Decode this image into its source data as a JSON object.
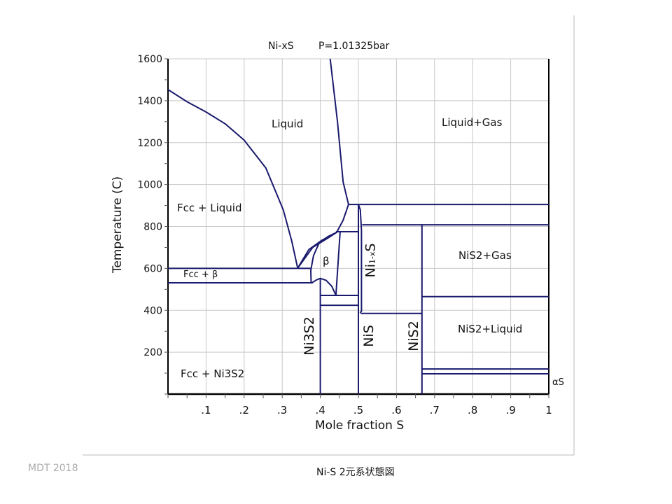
{
  "footer": {
    "left": "MDT  2018",
    "caption": "Ni-S  2元系状態図"
  },
  "chart_data": {
    "type": "line",
    "title": "Ni-xS",
    "subtitle": "P=1.01325bar",
    "xlabel": "Mole fraction S",
    "ylabel": "Temperature (C)",
    "xlim": [
      0,
      1
    ],
    "ylim": [
      0,
      1600
    ],
    "grid": true,
    "x_ticks": [
      ".1",
      ".2",
      ".3",
      ".4",
      ".5",
      ".6",
      ".7",
      ".8",
      ".9",
      "1"
    ],
    "y_ticks": [
      "200",
      "400",
      "600",
      "800",
      "1000",
      "1200",
      "1400",
      "1600"
    ],
    "line_color": "#1a1a6e",
    "grid_color": "#c8c8c8",
    "regions": {
      "liquid": "Liquid",
      "liquid_gas": "Liquid+Gas",
      "fcc_liquid": "Fcc + Liquid",
      "fcc_beta": "Fcc + β",
      "beta": "β",
      "ni1xs_base": "Ni",
      "ni1xs_sub": "1-x",
      "ni1xs_end": "S",
      "nis2_gas": "NiS2+Gas",
      "nis2_liquid": "NiS2+Liquid",
      "fcc_ni3s2": "Fcc + Ni3S2",
      "alpha_s": "αS",
      "ni3s2": "Ni3S2",
      "nis": "NiS",
      "nis2": "NiS2"
    },
    "series": [
      {
        "name": "liquidus-ni-side",
        "points": [
          [
            0,
            1453
          ],
          [
            0.05,
            1395
          ],
          [
            0.1,
            1346
          ],
          [
            0.15,
            1290
          ],
          [
            0.2,
            1212
          ],
          [
            0.257,
            1079
          ],
          [
            0.303,
            878
          ],
          [
            0.325,
            730
          ],
          [
            0.34,
            605
          ]
        ]
      },
      {
        "name": "liquidus-s-side",
        "points": [
          [
            0.426,
            1600
          ],
          [
            0.445,
            1300
          ],
          [
            0.46,
            1012
          ],
          [
            0.474,
            905
          ]
        ]
      },
      {
        "name": "monotectic-905",
        "points": [
          [
            0.474,
            905
          ],
          [
            1,
            905
          ]
        ]
      },
      {
        "name": "liquidus-beta",
        "points": [
          [
            0.34,
            600
          ],
          [
            0.37,
            690
          ],
          [
            0.405,
            735
          ],
          [
            0.443,
            772
          ],
          [
            0.46,
            830
          ],
          [
            0.474,
            905
          ]
        ]
      },
      {
        "name": "beta-solidus",
        "points": [
          [
            0.34,
            600
          ],
          [
            0.38,
            700
          ],
          [
            0.42,
            745
          ],
          [
            0.443,
            772
          ]
        ]
      },
      {
        "name": "beta-left",
        "points": [
          [
            0.376,
            531
          ],
          [
            0.375,
            590
          ],
          [
            0.382,
            660
          ],
          [
            0.397,
            722
          ],
          [
            0.42,
            752
          ],
          [
            0.443,
            772
          ]
        ]
      },
      {
        "name": "beta-right",
        "points": [
          [
            0.452,
            775
          ],
          [
            0.441,
            471
          ]
        ]
      },
      {
        "name": "peritectic-775",
        "points": [
          [
            0.441,
            775
          ],
          [
            0.5,
            775
          ]
        ]
      },
      {
        "name": "beta-lower-dome",
        "points": [
          [
            0.378,
            531
          ],
          [
            0.39,
            545
          ],
          [
            0.4,
            552
          ],
          [
            0.415,
            543
          ],
          [
            0.43,
            515
          ],
          [
            0.441,
            471
          ]
        ]
      },
      {
        "name": "eutectic-600",
        "points": [
          [
            0,
            600
          ],
          [
            0.376,
            600
          ]
        ]
      },
      {
        "name": "eutectoid-531",
        "points": [
          [
            0,
            531
          ],
          [
            0.38,
            531
          ]
        ]
      },
      {
        "name": "ni3s2",
        "points": [
          [
            0.4,
            550
          ],
          [
            0.4,
            0
          ]
        ]
      },
      {
        "name": "iso-471",
        "points": [
          [
            0.4,
            471
          ],
          [
            0.5,
            471
          ]
        ]
      },
      {
        "name": "iso-424",
        "points": [
          [
            0.4,
            424
          ],
          [
            0.5,
            424
          ]
        ]
      },
      {
        "name": "nis",
        "points": [
          [
            0.5,
            905
          ],
          [
            0.5,
            0
          ]
        ]
      },
      {
        "name": "ni1xs-right",
        "points": [
          [
            0.5,
            905
          ],
          [
            0.505,
            880
          ],
          [
            0.508,
            780
          ],
          [
            0.508,
            395
          ],
          [
            0.504,
            388
          ]
        ]
      },
      {
        "name": "iso-385",
        "points": [
          [
            0.506,
            385
          ],
          [
            0.667,
            385
          ]
        ]
      },
      {
        "name": "iso-808",
        "points": [
          [
            0.51,
            808
          ],
          [
            1,
            808
          ]
        ]
      },
      {
        "name": "nis2",
        "points": [
          [
            0.667,
            808
          ],
          [
            0.667,
            0
          ]
        ]
      },
      {
        "name": "iso-465",
        "points": [
          [
            0.667,
            465
          ],
          [
            1,
            465
          ]
        ]
      },
      {
        "name": "iso-120",
        "points": [
          [
            0.667,
            120
          ],
          [
            1,
            120
          ]
        ]
      },
      {
        "name": "iso-97",
        "points": [
          [
            0.667,
            97
          ],
          [
            1,
            97
          ]
        ]
      }
    ]
  }
}
